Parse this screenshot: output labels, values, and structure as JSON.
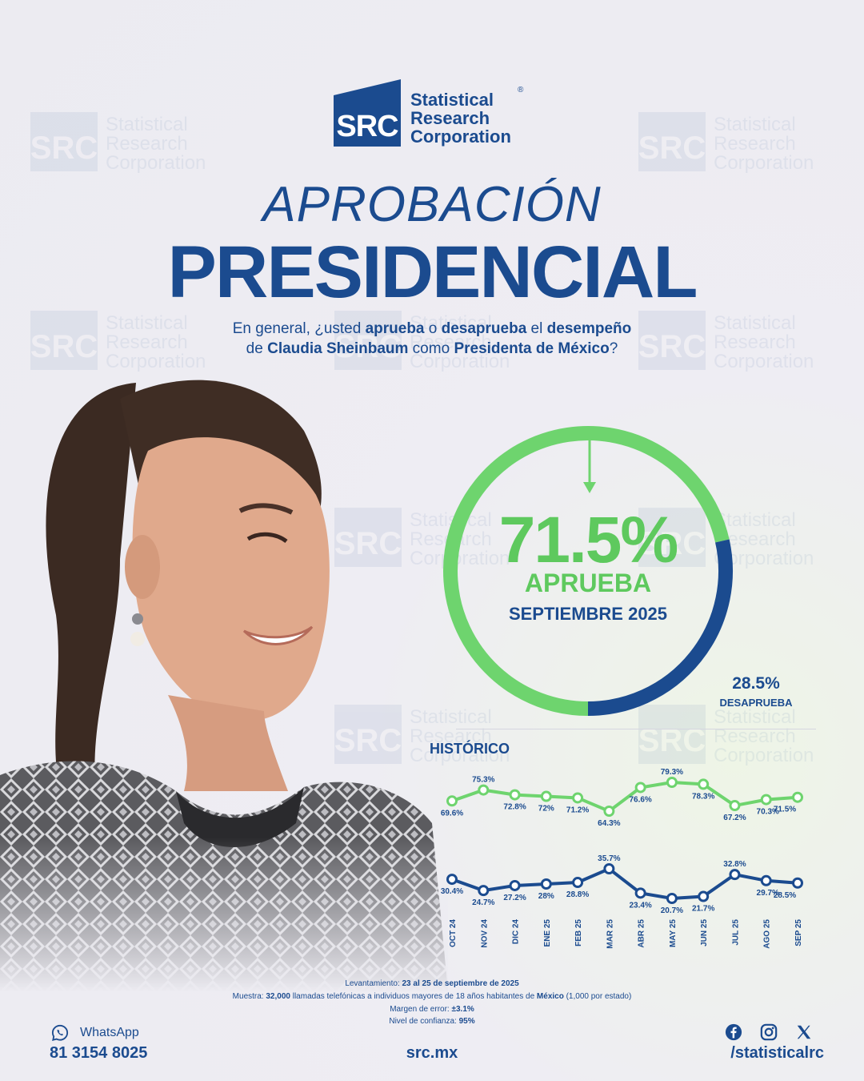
{
  "brand": {
    "abbr": "SRC",
    "name_lines": [
      "Statistical",
      "Research",
      "Corporation"
    ],
    "registered": "®"
  },
  "title": {
    "line1": "APROBACIÓN",
    "line2": "PRESIDENCIAL"
  },
  "question": {
    "p1": "En general, ¿usted ",
    "b1": "aprueba",
    "p2": " o ",
    "b2": "desaprueba",
    "p3": " el ",
    "b3": "desempeño",
    "p4": "de ",
    "b4": "Claudia Sheinbaum",
    "p5": " como ",
    "b5": "Presidenta de México",
    "p6": "?"
  },
  "current": {
    "approve_pct": "71.5%",
    "approve_label": "APRUEBA",
    "month_label": "SEPTIEMBRE 2025",
    "disapprove_pct": "28.5%",
    "disapprove_label": "DESAPRUEBA"
  },
  "colors": {
    "green": "#6ed46e",
    "green_text": "#5ec95e",
    "blue": "#1b4b8f"
  },
  "chart_data": [
    {
      "type": "pie",
      "categories": [
        "APRUEBA",
        "DESAPRUEBA"
      ],
      "values": [
        71.5,
        28.5
      ]
    },
    {
      "type": "line",
      "title": "HISTÓRICO",
      "categories": [
        "OCT 24",
        "NOV 24",
        "DIC 24",
        "ENE 25",
        "FEB 25",
        "MAR 25",
        "ABR 25",
        "MAY 25",
        "JUN 25",
        "JUL 25",
        "AGO 25",
        "SEP 25"
      ],
      "series": [
        {
          "values": [
            69.6,
            75.3,
            72.8,
            72,
            71.2,
            64.3,
            76.6,
            79.3,
            78.3,
            67.2,
            70.3,
            71.5
          ],
          "labels": [
            "69.6%",
            "75.3%",
            "72.8%",
            "72%",
            "71.2%",
            "64.3%",
            "76.6%",
            "79.3%",
            "78.3%",
            "67.2%",
            "70.3%",
            "71.5%"
          ]
        },
        {
          "values": [
            30.4,
            24.7,
            27.2,
            28,
            28.8,
            35.7,
            23.4,
            20.7,
            21.7,
            32.8,
            29.7,
            28.5
          ],
          "labels": [
            "30.4%",
            "24.7%",
            "27.2%",
            "28%",
            "28.8%",
            "35.7%",
            "23.4%",
            "20.7%",
            "21.7%",
            "32.8%",
            "29.7%",
            "28.5%"
          ]
        }
      ]
    }
  ],
  "methodology": {
    "lev_label": "Levantamiento: ",
    "lev_value": "23 al 25 de septiembre de 2025",
    "muestra_label": "Muestra: ",
    "muestra_n": "32,000",
    "muestra_mid": " llamadas telefónicas a individuos mayores de 18 años habitantes de ",
    "muestra_mx": "México",
    "muestra_end": " (1,000 por estado)",
    "margen_label": "Margen de error: ",
    "margen_value": "±3.1%",
    "conf_label": "Nivel de confianza: ",
    "conf_value": "95%"
  },
  "footer": {
    "whatsapp_label": "WhatsApp",
    "whatsapp_number": "81 3154 8025",
    "site": "src.mx",
    "social_handle": "/statisticalrc"
  }
}
